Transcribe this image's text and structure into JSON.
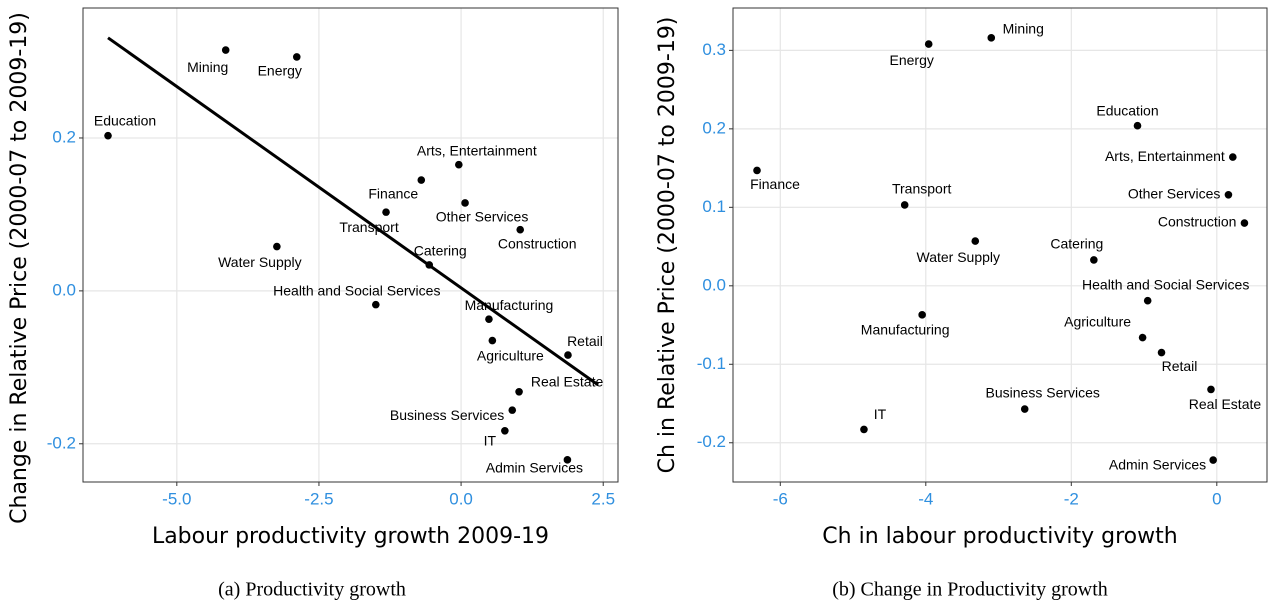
{
  "chart_data": [
    {
      "type": "scatter",
      "caption": "(a) Productivity growth",
      "x_label": "Labour productivity growth 2009-19",
      "y_label": "Change in Relative Price (2000-07 to 2009-19)",
      "color": "#000000",
      "tick_color": "#2f8fdf",
      "grid": true,
      "xlim": [
        -6.65,
        2.76
      ],
      "ylim": [
        -0.25,
        0.37
      ],
      "xticks": [
        {
          "value": -5,
          "label": "-5.0"
        },
        -2.5,
        {
          "value": 0,
          "label": "0.0"
        },
        2.5
      ],
      "yticks": [
        0.2,
        {
          "value": 0,
          "label": "0.0"
        },
        -0.2
      ],
      "labels": [
        "Education",
        "Mining",
        "Energy",
        "Arts, Entertainment",
        "Finance",
        "Other Services",
        "Transport",
        "Construction",
        "Water Supply",
        "Catering",
        "Health and Social Services",
        "Manufacturing",
        "Agriculture",
        "Retail",
        "Real Estate",
        "Business Services",
        "IT",
        "Admin Services"
      ],
      "x": [
        -6.21,
        -4.14,
        -2.89,
        -0.04,
        -0.7,
        0.07,
        -1.32,
        1.04,
        -3.24,
        -0.56,
        -1.5,
        0.49,
        0.55,
        1.88,
        1.02,
        0.9,
        0.77,
        1.87
      ],
      "values": [
        0.203,
        0.315,
        0.306,
        0.165,
        0.145,
        0.115,
        0.103,
        0.08,
        0.058,
        0.034,
        -0.018,
        -0.037,
        -0.065,
        -0.084,
        -0.132,
        -0.156,
        -0.183,
        -0.221
      ],
      "fit_line": {
        "x": [
          -6.21,
          2.41
        ],
        "y": [
          0.331,
          -0.123
        ]
      }
    },
    {
      "type": "scatter",
      "caption": "(b) Change in Productivity growth",
      "x_label": "Ch in labour productivity growth",
      "y_label": "Ch in Relative Price (2000-07 to 2009-19)",
      "color": "#000000",
      "tick_color": "#2f8fdf",
      "grid": true,
      "xlim": [
        -6.65,
        0.69
      ],
      "ylim": [
        -0.25,
        0.354
      ],
      "xticks": [
        -6,
        -4,
        -2,
        0
      ],
      "yticks": [
        0.3,
        0.2,
        0.1,
        {
          "value": 0,
          "label": "0.0"
        },
        -0.1,
        -0.2
      ],
      "labels": [
        "Finance",
        "Energy",
        "Mining",
        "Education",
        "Arts, Entertainment",
        "Other Services",
        "Construction",
        "Transport",
        "Water Supply",
        "Catering",
        "Health and Social Services",
        "Manufacturing",
        "Agriculture",
        "Retail",
        "Real Estate",
        "Business Services",
        "IT",
        "Admin Services"
      ],
      "x": [
        -6.32,
        -3.96,
        -3.1,
        -1.09,
        0.22,
        0.16,
        0.38,
        -4.29,
        -3.32,
        -1.69,
        -0.95,
        -4.05,
        -1.02,
        -0.76,
        -0.08,
        -2.64,
        -4.85,
        -0.05
      ],
      "values": [
        0.147,
        0.308,
        0.316,
        0.204,
        0.164,
        0.116,
        0.08,
        0.103,
        0.057,
        0.033,
        -0.019,
        -0.037,
        -0.066,
        -0.085,
        -0.132,
        -0.157,
        -0.183,
        -0.222
      ]
    }
  ]
}
